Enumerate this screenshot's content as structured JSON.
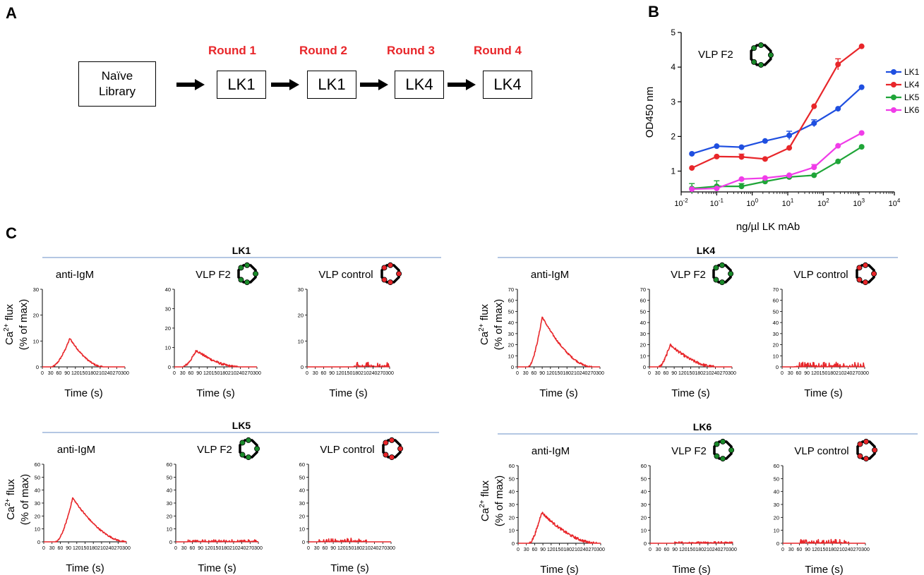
{
  "panel_labels": {
    "a": "A",
    "b": "B",
    "c": "C"
  },
  "panel_a": {
    "library_line1": "Naïve",
    "library_line2": "Library",
    "rounds": [
      {
        "label": "Round 1",
        "clone": "LK1"
      },
      {
        "label": "Round 2",
        "clone": "LK1"
      },
      {
        "label": "Round 3",
        "clone": "LK4"
      },
      {
        "label": "Round 4",
        "clone": "LK4"
      }
    ]
  },
  "colors": {
    "red": "#e8262a",
    "blue": "#1f4fe0",
    "green": "#1fa538",
    "magenta": "#f03ce8",
    "rule": "#6a8fc7",
    "vlp_green": "#1a8a2a",
    "vlp_red": "#e8262a"
  },
  "chart_data": [
    {
      "id": "B",
      "type": "line",
      "annotation": "VLP F2",
      "xlabel": "ng/µl LK mAb",
      "ylabel": "OD450 nm",
      "xscale": "log",
      "xlim_exp": [
        -2,
        4
      ],
      "ylim": [
        0.4,
        5
      ],
      "yticks": [
        "1",
        "2",
        "3",
        "4",
        "5"
      ],
      "xticks": [
        {
          "base": "10",
          "exp": "-2"
        },
        {
          "base": "10",
          "exp": "-1"
        },
        {
          "base": "10",
          "exp": "0"
        },
        {
          "base": "10",
          "exp": "1"
        },
        {
          "base": "10",
          "exp": "2"
        },
        {
          "base": "10",
          "exp": "3"
        },
        {
          "base": "10",
          "exp": "4"
        }
      ],
      "x": [
        0.02,
        0.1,
        0.5,
        2.3,
        11,
        55,
        260,
        1200
      ],
      "legend_position": "right",
      "series": [
        {
          "name": "LK1",
          "color": "#1f4fe0",
          "values": [
            1.5,
            1.72,
            1.69,
            1.87,
            2.03,
            2.38,
            2.8,
            3.42
          ],
          "errors": [
            0,
            0,
            0,
            0,
            0.12,
            0.1,
            0,
            0
          ]
        },
        {
          "name": "LK4",
          "color": "#e8262a",
          "values": [
            1.09,
            1.42,
            1.41,
            1.35,
            1.67,
            2.87,
            4.08,
            4.6
          ],
          "errors": [
            0,
            0,
            0.08,
            0,
            0,
            0,
            0.16,
            0
          ]
        },
        {
          "name": "LK5",
          "color": "#1fa538",
          "values": [
            0.5,
            0.56,
            0.56,
            0.7,
            0.83,
            0.88,
            1.28,
            1.7
          ],
          "errors": [
            0.14,
            0.16,
            0.08,
            0,
            0,
            0,
            0,
            0
          ]
        },
        {
          "name": "LK6",
          "color": "#f03ce8",
          "values": [
            0.48,
            0.5,
            0.77,
            0.8,
            0.88,
            1.11,
            1.73,
            2.1
          ],
          "errors": [
            0,
            0,
            0,
            0,
            0,
            0.08,
            0,
            0
          ]
        }
      ]
    },
    {
      "id": "C",
      "type": "line",
      "xlabel": "Time (s)",
      "ylabel_line1": "Ca",
      "ylabel_sup": "2+",
      "ylabel_rest": " flux",
      "ylabel_line2": "(% of max)",
      "xticks": [
        "0",
        "30",
        "60",
        "90",
        "120",
        "150",
        "180",
        "210",
        "240",
        "270",
        "300"
      ],
      "groups": [
        {
          "title": "LK1",
          "plots": [
            {
              "label": "anti-IgM",
              "ymax": 30,
              "yticks": [
                "0",
                "10",
                "20",
                "30"
              ],
              "series_type": "curve",
              "peak_t": 100,
              "peak_v": 11,
              "start": 35,
              "end": 220,
              "noise": 0.3
            },
            {
              "label": "VLP F2",
              "icon": "green",
              "ymax": 40,
              "yticks": [
                "0",
                "10",
                "20",
                "30",
                "40"
              ],
              "series_type": "curve",
              "peak_t": 80,
              "peak_v": 8.5,
              "start": 30,
              "end": 230,
              "noise": 0.6
            },
            {
              "label": "VLP control",
              "icon": "red",
              "ymax": 30,
              "yticks": [
                "0",
                "10",
                "20",
                "30"
              ],
              "series_type": "noise",
              "noise_max": 5,
              "noise_start": 170
            }
          ]
        },
        {
          "title": "LK4",
          "plots": [
            {
              "label": "anti-IgM",
              "ymax": 70,
              "yticks": [
                "0",
                "10",
                "20",
                "30",
                "40",
                "50",
                "60",
                "70"
              ],
              "series_type": "curve",
              "peak_t": 90,
              "peak_v": 45,
              "start": 40,
              "end": 270,
              "noise": 0.8
            },
            {
              "label": "VLP F2",
              "icon": "green",
              "ymax": 70,
              "yticks": [
                "0",
                "10",
                "20",
                "30",
                "40",
                "50",
                "60",
                "70"
              ],
              "series_type": "curve",
              "peak_t": 75,
              "peak_v": 20,
              "start": 35,
              "end": 240,
              "noise": 1.2
            },
            {
              "label": "VLP control",
              "icon": "red",
              "ymax": 70,
              "yticks": [
                "0",
                "10",
                "20",
                "30",
                "40",
                "50",
                "60",
                "70"
              ],
              "series_type": "noise",
              "noise_max": 10,
              "noise_start": 45
            }
          ]
        },
        {
          "title": "LK5",
          "plots": [
            {
              "label": "anti-IgM",
              "ymax": 60,
              "yticks": [
                "0",
                "10",
                "20",
                "30",
                "40",
                "50",
                "60"
              ],
              "series_type": "curve",
              "peak_t": 105,
              "peak_v": 34,
              "start": 45,
              "end": 300,
              "noise": 0.6
            },
            {
              "label": "VLP F2",
              "icon": "green",
              "ymax": 60,
              "yticks": [
                "0",
                "10",
                "20",
                "30",
                "40",
                "50",
                "60"
              ],
              "series_type": "noise",
              "noise_max": 4,
              "noise_start": 45
            },
            {
              "label": "VLP control",
              "icon": "red",
              "ymax": 60,
              "yticks": [
                "0",
                "10",
                "20",
                "30",
                "40",
                "50",
                "60"
              ],
              "series_type": "noise",
              "noise_max": 7,
              "noise_start": 35,
              "noise_end": 210
            }
          ]
        },
        {
          "title": "LK6",
          "plots": [
            {
              "label": "anti-IgM",
              "ymax": 60,
              "yticks": [
                "0",
                "10",
                "20",
                "30",
                "40",
                "50",
                "60"
              ],
              "series_type": "curve",
              "peak_t": 85,
              "peak_v": 24,
              "start": 40,
              "end": 285,
              "noise": 1
            },
            {
              "label": "VLP F2",
              "icon": "green",
              "ymax": 60,
              "yticks": [
                "0",
                "10",
                "20",
                "30",
                "40",
                "50",
                "60"
              ],
              "series_type": "noise",
              "noise_max": 3,
              "noise_start": 90
            },
            {
              "label": "VLP control",
              "icon": "red",
              "ymax": 60,
              "yticks": [
                "0",
                "10",
                "20",
                "30",
                "40",
                "50",
                "60"
              ],
              "series_type": "noise",
              "noise_max": 7,
              "noise_start": 60,
              "noise_end": 240
            }
          ]
        }
      ]
    }
  ]
}
